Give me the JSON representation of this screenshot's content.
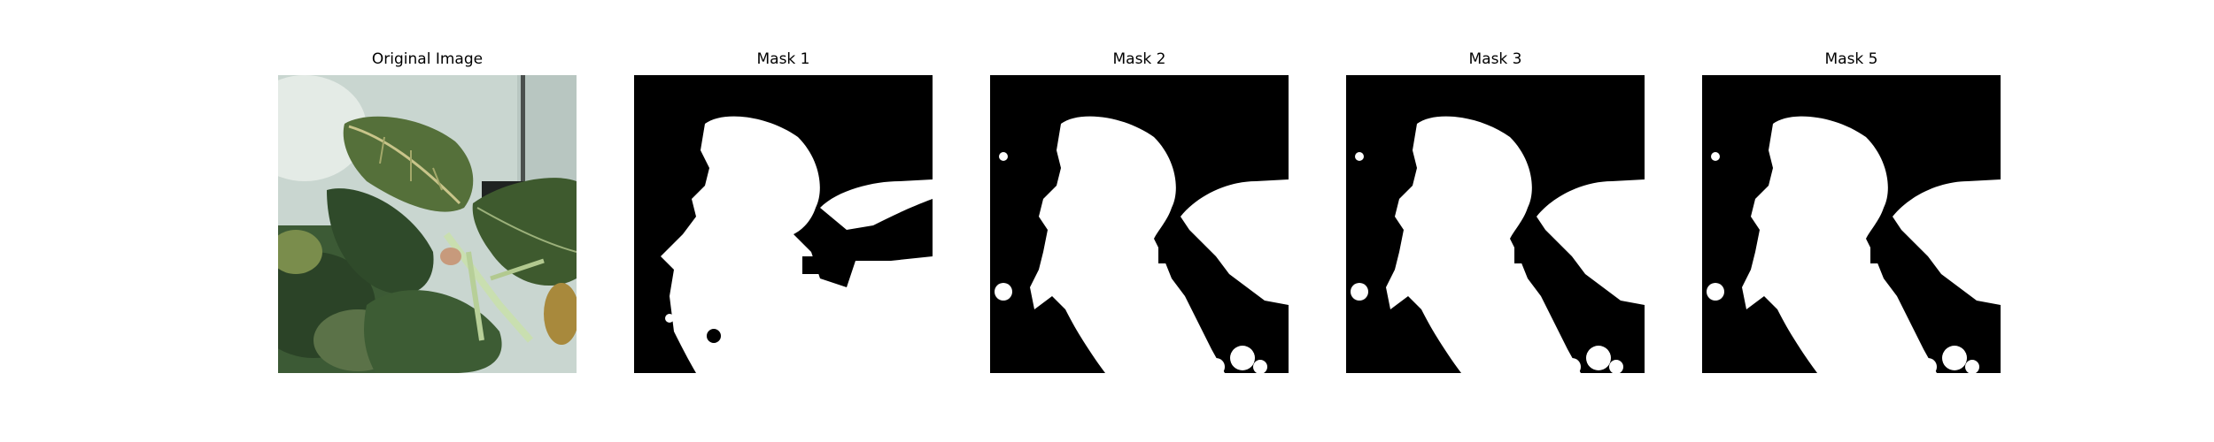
{
  "panels": [
    {
      "title": "Original Image",
      "kind": "photo"
    },
    {
      "title": "Mask 1",
      "kind": "mask"
    },
    {
      "title": "Mask 2",
      "kind": "mask"
    },
    {
      "title": "Mask 3",
      "kind": "mask"
    },
    {
      "title": "Mask 5",
      "kind": "mask"
    }
  ],
  "colors": {
    "mask_background": "#000000",
    "mask_foreground": "#ffffff",
    "wall": "#c9d6d0",
    "leaf_dark": "#2f4a2a",
    "leaf_light": "#6f8f4a",
    "background_foliage": "#3c5a35"
  }
}
